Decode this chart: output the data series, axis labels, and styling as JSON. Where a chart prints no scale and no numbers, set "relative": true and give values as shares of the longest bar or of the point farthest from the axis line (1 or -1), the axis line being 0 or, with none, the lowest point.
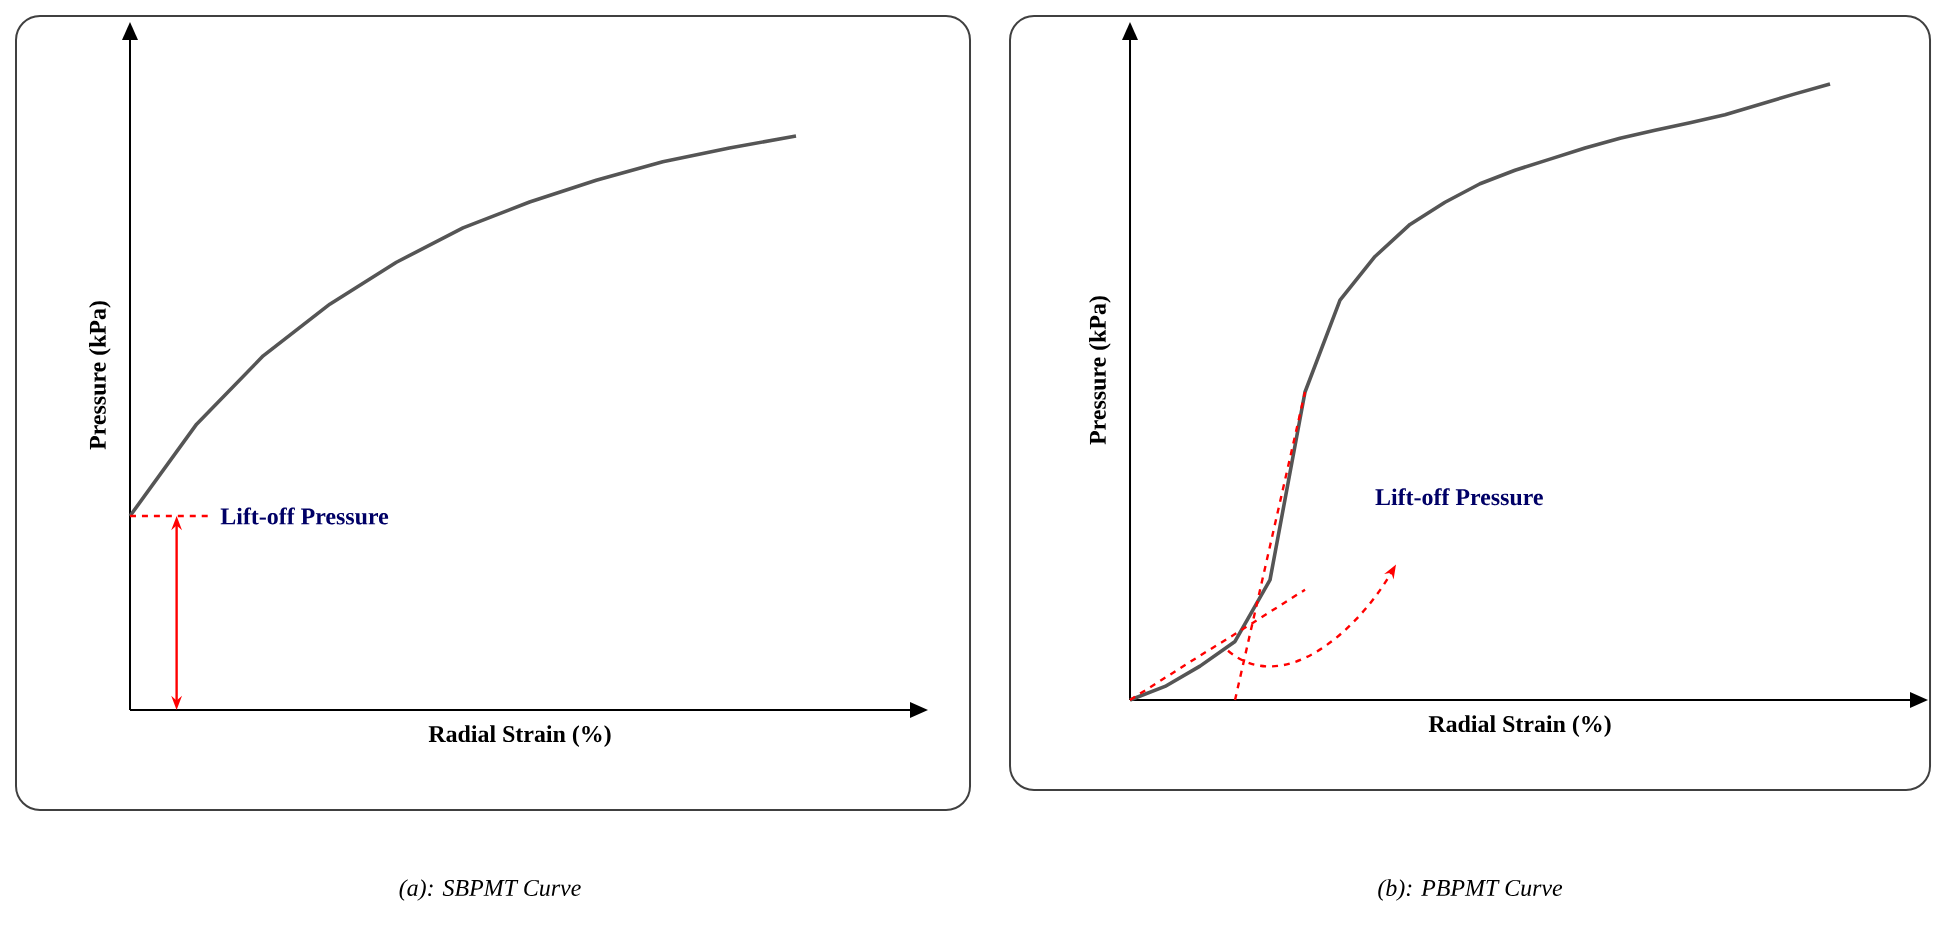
{
  "chart_data": [
    {
      "type": "line",
      "title": "(a): SBPMT Curve",
      "xlabel": "Radial Strain (%)",
      "ylabel": "Pressure (kPa)",
      "relative": true,
      "categories": [
        null,
        null,
        null,
        null,
        null,
        null,
        null,
        null,
        null,
        null,
        null
      ],
      "series": [
        {
          "color": "#555555",
          "values": [
            0.338,
            0.498,
            0.617,
            0.707,
            0.78,
            0.84,
            0.885,
            0.923,
            0.955,
            0.979,
            1
          ]
        }
      ],
      "ref_lines": [
        {
          "axis": "y",
          "value": 0.338,
          "label": "Lift-off Pressure",
          "color": "#ff0000",
          "line_style": "dashed"
        }
      ]
    },
    {
      "type": "line",
      "title": "(b): PBPMT Curve",
      "xlabel": "Radial Strain (%)",
      "ylabel": "Pressure (kPa)",
      "relative": true,
      "categories": [
        null,
        null,
        null,
        null,
        null,
        null,
        null,
        null,
        null,
        null,
        null,
        null,
        null,
        null,
        null,
        null,
        null,
        null,
        null,
        null,
        null
      ],
      "series": [
        {
          "color": "#555555",
          "values": [
            0,
            0.022,
            0.055,
            0.095,
            0.195,
            0.5,
            0.649,
            0.72,
            0.772,
            0.808,
            0.838,
            0.86,
            0.878,
            0.896,
            0.912,
            0.925,
            0.937,
            0.95,
            0.967,
            0.984,
            1
          ]
        },
        {
          "color": "#ff0000",
          "line_style": "dashed",
          "values": [
            0,
            0.036,
            0.072,
            0.107,
            0.143,
            0.179,
            null,
            null,
            null,
            null,
            null,
            null,
            null,
            null,
            null,
            null,
            null,
            null,
            null,
            null,
            null
          ]
        },
        {
          "color": "#ff0000",
          "line_style": "dashed",
          "values": [
            null,
            null,
            null,
            0,
            0.25,
            0.5,
            null,
            null,
            null,
            null,
            null,
            null,
            null,
            null,
            null,
            null,
            null,
            null,
            null,
            null,
            null
          ]
        }
      ],
      "annotations": [
        "Lift-off Pressure"
      ]
    }
  ]
}
